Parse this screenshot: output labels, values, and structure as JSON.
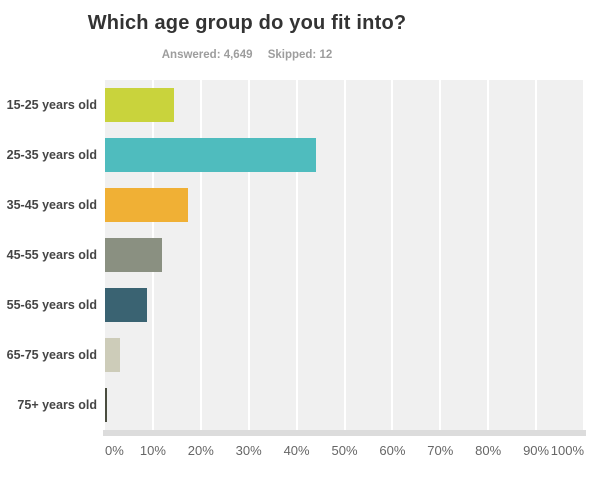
{
  "header": {
    "title": "Which age group do you fit into?",
    "answered_label": "Answered: 4,649",
    "skipped_label": "Skipped: 12"
  },
  "chart_data": {
    "type": "bar",
    "orientation": "horizontal",
    "title": "Which age group do you fit into?",
    "subtitle": "Answered: 4,649  Skipped: 12",
    "categories": [
      "15-25 years old",
      "25-35 years old",
      "35-45 years old",
      "45-55 years old",
      "55-65 years old",
      "65-75 years old",
      "75+ years old"
    ],
    "values": [
      14.4,
      44.0,
      17.3,
      12.0,
      8.8,
      3.1,
      0.4
    ],
    "unit": "%",
    "bar_colors": [
      "#c9d33c",
      "#4fbcbe",
      "#f0b035",
      "#8a9081",
      "#3a6372",
      "#cdccb9",
      "#4a4d40"
    ],
    "xlabel": "",
    "ylabel": "",
    "xlim": [
      0,
      100
    ],
    "x_ticks": [
      "0%",
      "10%",
      "20%",
      "30%",
      "40%",
      "50%",
      "60%",
      "70%",
      "80%",
      "90%",
      "100%"
    ],
    "grid": "vertical white gridlines every 10%",
    "legend": "none",
    "plot_background": "#f0f0f0"
  }
}
